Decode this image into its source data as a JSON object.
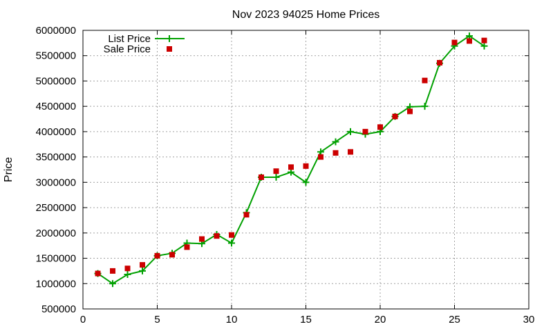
{
  "chart_data": {
    "type": "line",
    "title": "Nov 2023 94025 Home Prices",
    "xlabel": "",
    "ylabel": "Price",
    "xlim": [
      0,
      30
    ],
    "ylim": [
      500000,
      6000000
    ],
    "xticks": [
      0,
      5,
      10,
      15,
      20,
      25,
      30
    ],
    "yticks": [
      500000,
      1000000,
      1500000,
      2000000,
      2500000,
      3000000,
      3500000,
      4000000,
      4500000,
      5000000,
      5500000,
      6000000
    ],
    "grid": true,
    "legend": "top-left",
    "series": [
      {
        "name": "List Price",
        "style": "line+points",
        "marker": "plus",
        "color": "#00a000",
        "x": [
          1,
          2,
          3,
          4,
          5,
          6,
          7,
          8,
          9,
          10,
          11,
          12,
          13,
          14,
          15,
          16,
          17,
          18,
          19,
          20,
          21,
          22,
          23,
          24,
          25,
          26,
          27
        ],
        "y": [
          1200000,
          1000000,
          1180000,
          1250000,
          1550000,
          1600000,
          1800000,
          1790000,
          1970000,
          1800000,
          2400000,
          3100000,
          3100000,
          3200000,
          3000000,
          3600000,
          3800000,
          4000000,
          3950000,
          4000000,
          4300000,
          4490000,
          4500000,
          5350000,
          5690000,
          5890000,
          5690000
        ]
      },
      {
        "name": "Sale Price",
        "style": "points",
        "marker": "square",
        "color": "#cc0000",
        "x": [
          1,
          2,
          3,
          4,
          5,
          6,
          7,
          8,
          9,
          10,
          11,
          12,
          13,
          14,
          15,
          16,
          17,
          18,
          19,
          20,
          21,
          22,
          23,
          24,
          25,
          26,
          27
        ],
        "y": [
          1200000,
          1250000,
          1300000,
          1370000,
          1550000,
          1570000,
          1720000,
          1880000,
          1940000,
          1960000,
          2360000,
          3100000,
          3220000,
          3300000,
          3320000,
          3500000,
          3580000,
          3600000,
          4000000,
          4090000,
          4300000,
          4400000,
          5010000,
          5360000,
          5760000,
          5790000,
          5800000
        ]
      }
    ]
  }
}
